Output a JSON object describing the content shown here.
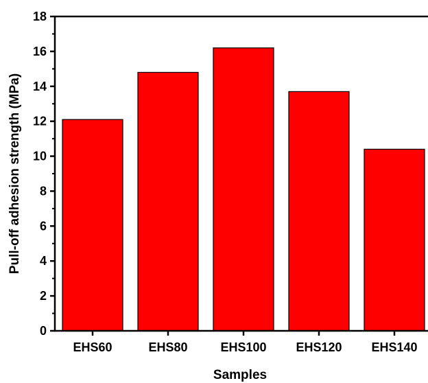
{
  "chart_data": {
    "type": "bar",
    "categories": [
      "EHS60",
      "EHS80",
      "EHS100",
      "EHS120",
      "EHS140"
    ],
    "values": [
      12.1,
      14.8,
      16.2,
      13.7,
      10.4
    ],
    "title": "",
    "xlabel": "Samples",
    "ylabel": "Pull-off adhesion strength (MPa)",
    "ylim": [
      0,
      18
    ],
    "yticks": [
      "0",
      "2",
      "4",
      "6",
      "8",
      "10",
      "12",
      "14",
      "16",
      "18"
    ],
    "grid": false,
    "bar_color": "#ff0000",
    "bar_edge_color": "#000000"
  }
}
